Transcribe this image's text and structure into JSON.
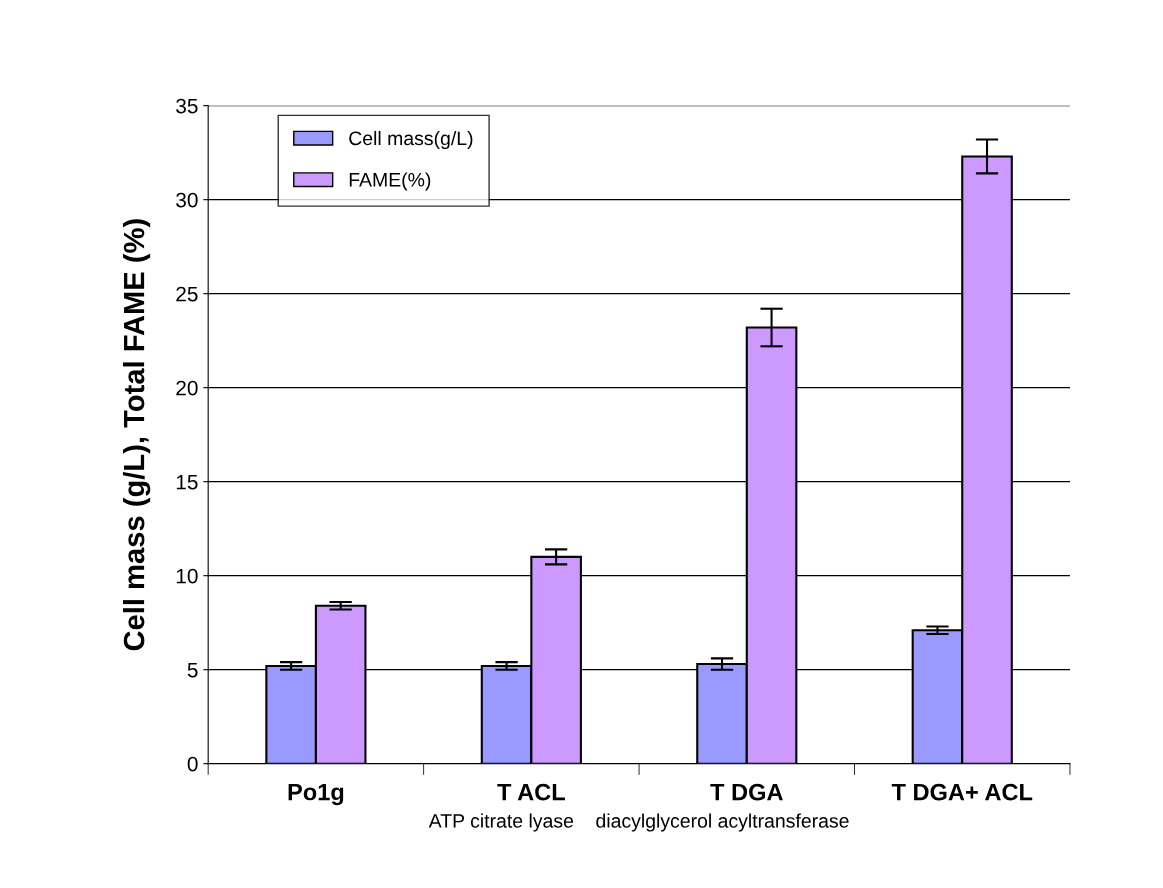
{
  "chart_data": {
    "type": "bar",
    "ylabel": "Cell mass (g/L), Total FAME (%)",
    "xlabel": "ATP citrate lyase    diacylglycerol acyltransferase",
    "categories": [
      "Po1g",
      "T ACL",
      "T DGA",
      "T DGA+ ACL"
    ],
    "series": [
      {
        "name": "Cell mass(g/L)",
        "color": "#9999ff",
        "values": [
          5.2,
          5.2,
          5.3,
          7.1
        ],
        "errors": [
          0.2,
          0.2,
          0.3,
          0.2
        ]
      },
      {
        "name": "FAME(%)",
        "color": "#cc99ff",
        "values": [
          8.4,
          11.0,
          23.2,
          32.3
        ],
        "errors": [
          0.2,
          0.4,
          1.0,
          0.9
        ]
      }
    ],
    "ylim": [
      0,
      35
    ],
    "yticks": [
      0,
      5,
      10,
      15,
      20,
      25,
      30,
      35
    ],
    "grid": "y",
    "legend": "top left"
  }
}
